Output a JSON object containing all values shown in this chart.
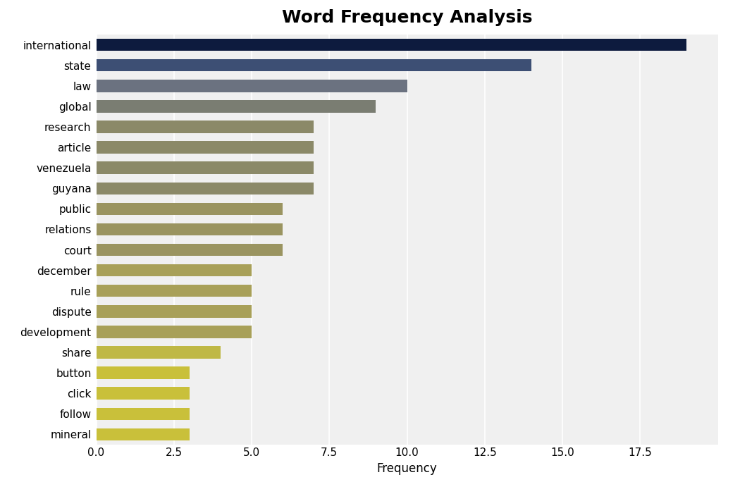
{
  "words": [
    "international",
    "state",
    "law",
    "global",
    "research",
    "article",
    "venezuela",
    "guyana",
    "public",
    "relations",
    "court",
    "december",
    "rule",
    "dispute",
    "development",
    "share",
    "button",
    "click",
    "follow",
    "mineral"
  ],
  "frequencies": [
    19,
    14,
    10,
    9,
    7,
    7,
    7,
    7,
    6,
    6,
    6,
    5,
    5,
    5,
    5,
    4,
    3,
    3,
    3,
    3
  ],
  "colors": [
    "#0d1b3e",
    "#3d4f74",
    "#6b7280",
    "#7a7d72",
    "#8b8968",
    "#8b8968",
    "#8b8968",
    "#8b8968",
    "#9a9460",
    "#9a9460",
    "#9a9460",
    "#a8a058",
    "#a8a058",
    "#a8a058",
    "#a8a058",
    "#bfb845",
    "#c9c03a",
    "#c9c03a",
    "#c9c03a",
    "#c9c03a"
  ],
  "title": "Word Frequency Analysis",
  "xlabel": "Frequency",
  "title_fontsize": 18,
  "label_fontsize": 12,
  "tick_fontsize": 11,
  "figure_facecolor": "#ffffff",
  "axes_facecolor": "#f0f0f0",
  "xlim": [
    0,
    20
  ],
  "xticks": [
    0.0,
    2.5,
    5.0,
    7.5,
    10.0,
    12.5,
    15.0,
    17.5
  ],
  "xticklabels": [
    "0.0",
    "2.5",
    "5.0",
    "7.5",
    "10.0",
    "12.5",
    "15.0",
    "17.5"
  ],
  "bar_height": 0.6,
  "figsize": [
    10.5,
    7.01
  ],
  "dpi": 100
}
